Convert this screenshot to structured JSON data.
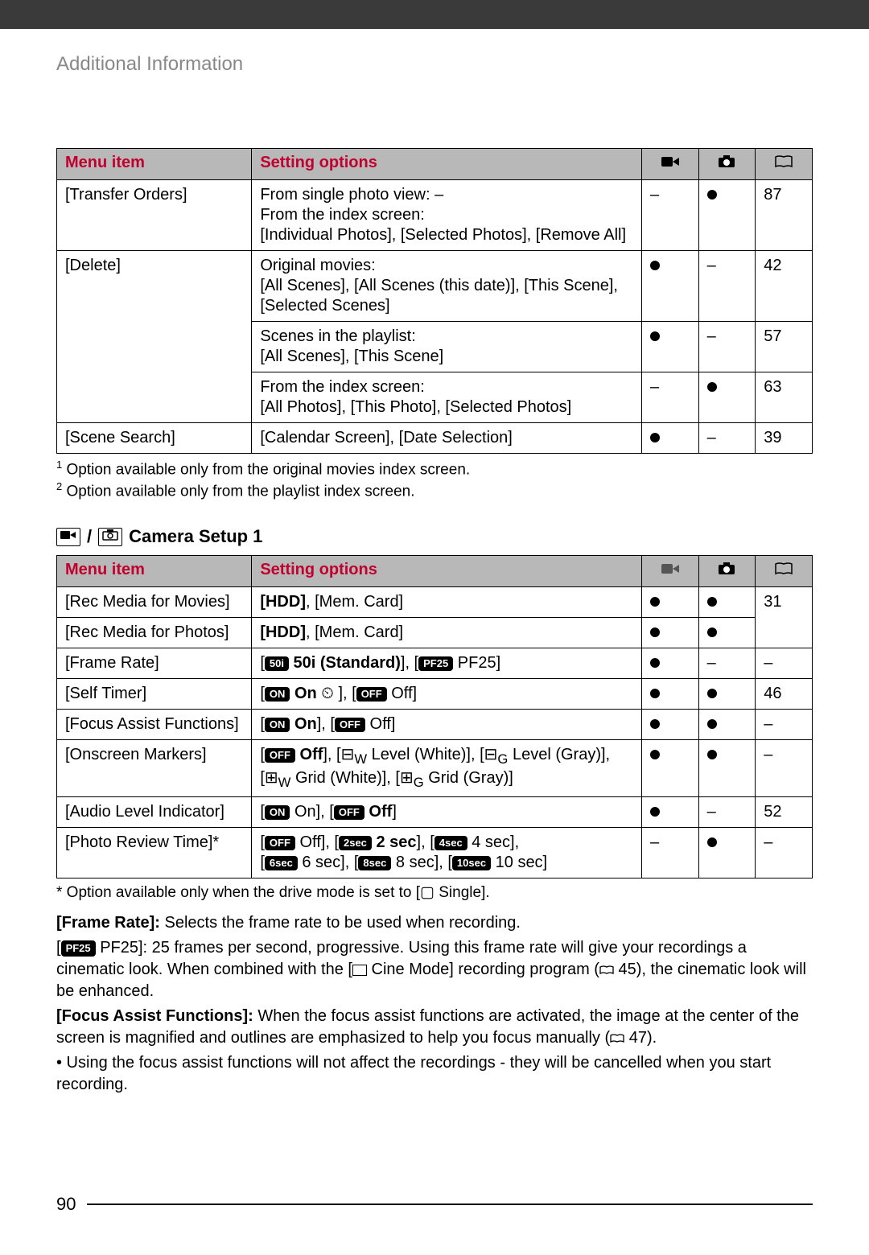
{
  "breadcrumb": "Additional Information",
  "headers": {
    "menu": "Menu item",
    "options": "Setting options"
  },
  "icons": {
    "movie": "▶",
    "photo": "◧",
    "book": "⫿"
  },
  "table1": {
    "rows": [
      {
        "menu": "[Transfer Orders]",
        "opts": "From single photo view: –\nFrom the index screen:\n[Individual Photos], [Selected Photos], [Remove All]",
        "a": "–",
        "b": "dot",
        "p": "87"
      },
      {
        "menu": "[Delete]",
        "opts": "Original movies:\n[All Scenes], [All Scenes (this date)], [This Scene], [Selected Scenes]",
        "a": "dot",
        "b": "–",
        "p": "42"
      },
      {
        "menu": "",
        "opts": "Scenes in the playlist:\n[All Scenes], [This Scene]",
        "a": "dot",
        "b": "–",
        "p": "57"
      },
      {
        "menu": "",
        "opts": "From the index screen:\n[All Photos], [This Photo], [Selected Photos]",
        "a": "–",
        "b": "dot",
        "p": "63"
      },
      {
        "menu": "[Scene Search]",
        "opts": "[Calendar Screen], [Date Selection]",
        "a": "dot",
        "b": "–",
        "p": "39"
      }
    ],
    "foot1": "Option available only from the original movies index screen.",
    "foot2": "Option available only from the playlist index screen."
  },
  "section2_title": "Camera Setup 1",
  "table2": {
    "rows": [
      {
        "menu": "[Rec Media for Movies]",
        "opts": "<b>[HDD]</b>, [Mem. Card]",
        "a": "dot",
        "b": "dot",
        "p": "31"
      },
      {
        "menu": "[Rec Media for Photos]",
        "opts": "<b>[HDD]</b>, [Mem. Card]",
        "a": "dot",
        "b": "dot",
        "p": ""
      },
      {
        "menu": "[Frame Rate]",
        "opts": "[<span class='badge'>50i</span> <b>50i (Standard)</b>],  [<span class='badge'>PF25</span> PF25]",
        "a": "dot",
        "b": "–",
        "p": "–"
      },
      {
        "menu": "[Self Timer]",
        "opts": "[<span class='badge'>ON</span> <b>On</b> ⏲ ], [<span class='badge'>OFF</span> Off]",
        "a": "dot",
        "b": "dot",
        "p": "46"
      },
      {
        "menu": "[Focus Assist Functions]",
        "opts": "[<span class='badge'>ON</span> <b>On</b>], [<span class='badge'>OFF</span> Off]",
        "a": "dot",
        "b": "dot",
        "p": "–"
      },
      {
        "menu": "[Onscreen Markers]",
        "opts": "[<span class='badge'>OFF</span> <b>Off</b>], [⊟<sub>W</sub> Level (White)], [⊟<sub>G</sub> Level (Gray)],<br>[⊞<sub>W</sub> Grid (White)], [⊞<sub>G</sub> Grid (Gray)]",
        "a": "dot",
        "b": "dot",
        "p": "–"
      },
      {
        "menu": "[Audio Level Indicator]",
        "opts": "[<span class='badge'>ON</span> On], [<span class='badge'>OFF</span> <b>Off</b>]",
        "a": "dot",
        "b": "–",
        "p": "52"
      },
      {
        "menu": "[Photo Review Time]*",
        "opts": "[<span class='badge'>OFF</span> Off], [<span class='badge'>2sec</span> <b>2 sec</b>], [<span class='badge'>4sec</span> 4 sec],<br>[<span class='badge'>6sec</span> 6 sec], [<span class='badge'>8sec</span> 8 sec], [<span class='badge'>10sec</span> 10 sec]",
        "a": "–",
        "b": "dot",
        "p": "–"
      }
    ],
    "asterisk": "* Option available only when the drive mode is set to [▢ Single]."
  },
  "desc": {
    "frame_rate_label": "[Frame Rate]:",
    "frame_rate_text": " Selects the frame rate to be used when recording.",
    "pf25": "[PF25 PF25]: 25 frames per second, progressive. Using this frame rate will give your recordings a cinematic look. When combined with the [▯ Cine Mode] recording program (⫿ 45), the cinematic look will be enhanced.",
    "focus_label": "[Focus Assist Functions]:",
    "focus_text": " When the focus assist functions are activated, the image at the center of the screen is magnified and outlines are emphasized to help you focus manually (⫿ 47).",
    "bullet": "• Using the focus assist functions will not affect the recordings - they will be cancelled when you start recording."
  },
  "page_number": "90"
}
